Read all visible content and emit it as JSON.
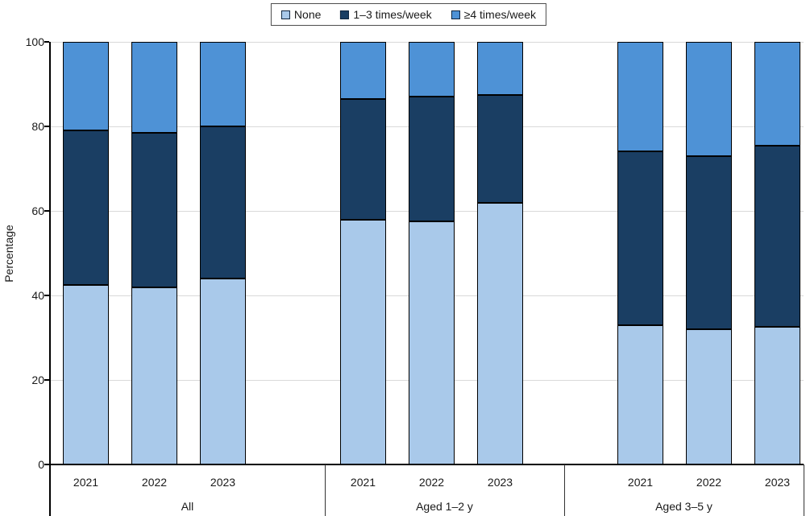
{
  "chart_data": {
    "type": "bar",
    "stacked": true,
    "title": "",
    "xlabel": "",
    "ylabel": "Percentage",
    "ylim": [
      0,
      100
    ],
    "yticks": [
      0,
      20,
      40,
      60,
      80,
      100
    ],
    "grid": true,
    "legend_position": "top-center",
    "group_labels": [
      "All",
      "Aged 1–2 y",
      "Aged 3–5 y"
    ],
    "categories": [
      "2021",
      "2022",
      "2023",
      "2021",
      "2022",
      "2023",
      "2021",
      "2022",
      "2023"
    ],
    "series": [
      {
        "name": "None",
        "color": "#a9c9ea",
        "values": [
          42.5,
          42,
          44,
          58,
          57.5,
          62,
          33,
          32,
          32.5
        ]
      },
      {
        "name": "1–3 times/week",
        "color": "#1a3e63",
        "values": [
          36.5,
          36.5,
          36,
          28.5,
          29.5,
          25.5,
          41,
          41,
          43
        ]
      },
      {
        "name": "≥4 times/week",
        "color": "#4e92d6",
        "values": [
          21,
          21.5,
          20,
          13.5,
          13,
          12.5,
          26,
          27,
          24.5
        ]
      }
    ]
  },
  "legend": {
    "items": [
      {
        "label": "None",
        "color": "#a9c9ea"
      },
      {
        "label": "1–3 times/week",
        "color": "#1a3e63"
      },
      {
        "label": "≥4 times/week",
        "color": "#4e92d6"
      }
    ]
  },
  "colors": {
    "none": "#a9c9ea",
    "one_to_three": "#1a3e63",
    "four_plus": "#4e92d6",
    "gridline": "#d9d9d9",
    "axis": "#000000"
  }
}
